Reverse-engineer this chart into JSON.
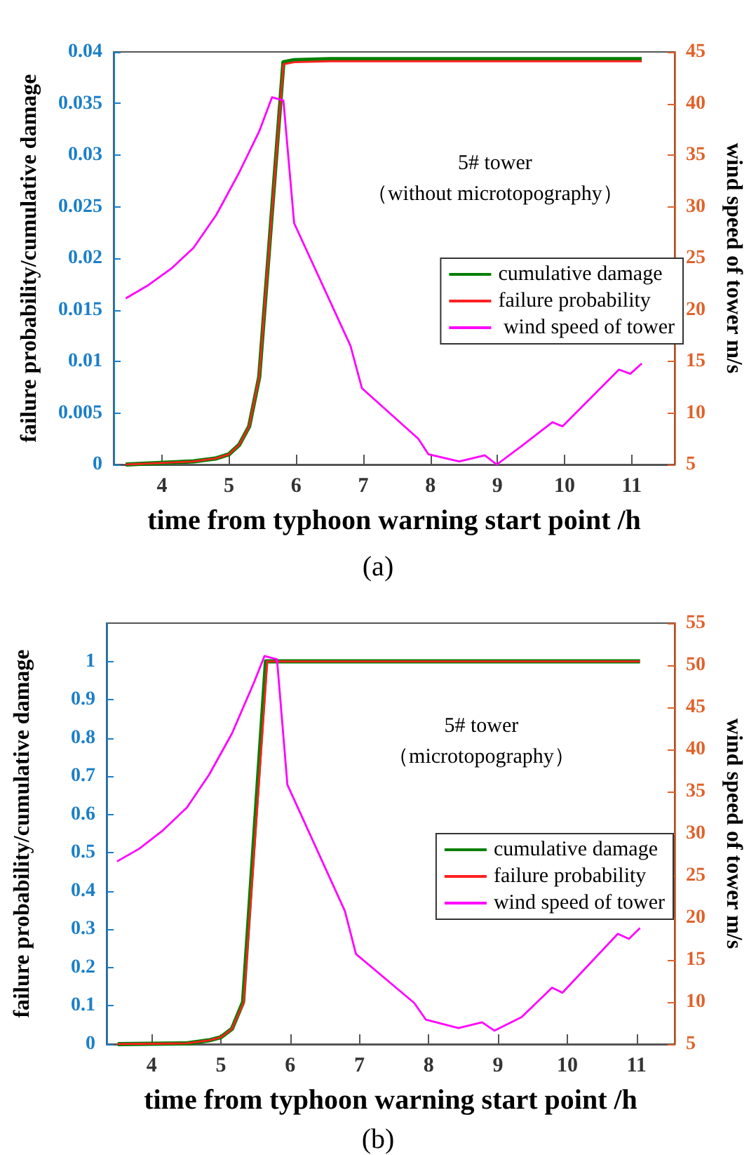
{
  "chart_data": [
    {
      "type": "line",
      "xlabel": "time from typhoon warning start point /h",
      "ylabel": "failure probability/cumulative damage",
      "y2label": "wind speed of tower m/s",
      "annotations": [
        "5# tower",
        "（without microtopography）",
        "(a)"
      ],
      "marker": "none",
      "legend": "right",
      "xlim": [
        3.28,
        11.64
      ],
      "xticks": [
        4,
        5,
        6,
        7,
        8,
        9,
        10,
        11
      ],
      "ylim": [
        0,
        0.04
      ],
      "yticks": [
        0,
        0.005,
        0.01,
        0.015,
        0.02,
        0.025,
        0.03,
        0.035,
        0.04
      ],
      "y2lim": [
        5,
        45
      ],
      "y2ticks": [
        5,
        10,
        15,
        20,
        25,
        30,
        35,
        40,
        45
      ],
      "series": [
        {
          "name": "cumulative damage",
          "color": "#007f00",
          "x": [
            3.46,
            3.8,
            4.14,
            4.47,
            4.81,
            5.0,
            5.15,
            5.3,
            5.45,
            5.81,
            5.97,
            6.5,
            11.15
          ],
          "values": [
            0,
            0.0001,
            0.0002,
            0.0003,
            0.0006,
            0.001,
            0.0019,
            0.0037,
            0.0085,
            0.039,
            0.0392,
            0.0393,
            0.0393
          ]
        },
        {
          "name": "failure probability",
          "color": "#ff2020",
          "x": [
            3.46,
            3.8,
            4.14,
            4.47,
            4.81,
            5.0,
            5.15,
            5.3,
            5.45,
            5.81,
            5.97,
            6.5,
            11.15
          ],
          "values": [
            0,
            0.0001,
            0.0002,
            0.0003,
            0.0006,
            0.001,
            0.0019,
            0.0037,
            0.0085,
            0.0388,
            0.039,
            0.0391,
            0.0391
          ]
        },
        {
          "name": " wind speed of tower",
          "color": "#ff00ff",
          "axis": "y2",
          "x": [
            3.46,
            3.8,
            4.14,
            4.47,
            4.81,
            5.15,
            5.45,
            5.64,
            5.81,
            5.97,
            6.81,
            6.98,
            7.82,
            7.97,
            8.43,
            8.81,
            8.99,
            9.38,
            9.82,
            9.97,
            10.81,
            10.98,
            11.15
          ],
          "values": [
            21.1,
            22.4,
            24.0,
            26.0,
            29.2,
            33.3,
            37.3,
            40.6,
            40.3,
            28.4,
            16.5,
            12.4,
            7.5,
            6.0,
            5.3,
            5.9,
            5.0,
            6.9,
            9.1,
            8.7,
            14.2,
            13.8,
            14.8
          ]
        }
      ]
    },
    {
      "type": "line",
      "xlabel": "time from typhoon warning start point /h",
      "ylabel": "failure probability/cumulative damage",
      "y2label": "wind speed of tower m/s",
      "annotations": [
        "5# tower",
        "（microtopography）",
        "(b)"
      ],
      "marker": "none",
      "legend": "right",
      "xlim": [
        3.35,
        11.55
      ],
      "xticks": [
        4,
        5,
        6,
        7,
        8,
        9,
        10,
        11
      ],
      "ylim": [
        0,
        1.1
      ],
      "yticks": [
        0,
        0.1,
        0.2,
        0.3,
        0.4,
        0.5,
        0.6,
        0.7,
        0.8,
        0.9,
        1
      ],
      "y2lim": [
        5,
        55
      ],
      "y2ticks": [
        5,
        10,
        15,
        20,
        25,
        30,
        35,
        40,
        45,
        50,
        55
      ],
      "series": [
        {
          "name": "cumulative damage",
          "color": "#007f00",
          "x": [
            3.51,
            4.5,
            4.83,
            5.0,
            5.16,
            5.32,
            5.65,
            11.05
          ],
          "values": [
            0,
            0.002,
            0.01,
            0.018,
            0.04,
            0.11,
            1,
            1
          ]
        },
        {
          "name": "failure probability",
          "color": "#ff2020",
          "x": [
            3.51,
            4.5,
            4.83,
            5.0,
            5.16,
            5.33,
            5.67,
            11.05
          ],
          "values": [
            0,
            0.002,
            0.01,
            0.018,
            0.04,
            0.11,
            1,
            1
          ]
        },
        {
          "name": "wind speed of tower",
          "color": "#ff00ff",
          "axis": "y2",
          "x": [
            3.5,
            3.82,
            4.15,
            4.51,
            4.83,
            5.16,
            5.48,
            5.63,
            5.81,
            5.96,
            6.79,
            6.95,
            7.79,
            7.96,
            8.43,
            8.77,
            8.95,
            9.34,
            9.78,
            9.93,
            10.73,
            10.89,
            11.05
          ],
          "values": [
            26.7,
            28.2,
            30.3,
            33.1,
            37.0,
            41.9,
            48.0,
            51.1,
            50.7,
            35.8,
            20.8,
            15.7,
            9.9,
            7.9,
            6.9,
            7.6,
            6.6,
            8.2,
            11.7,
            11.1,
            18.1,
            17.5,
            18.8
          ]
        }
      ]
    }
  ]
}
